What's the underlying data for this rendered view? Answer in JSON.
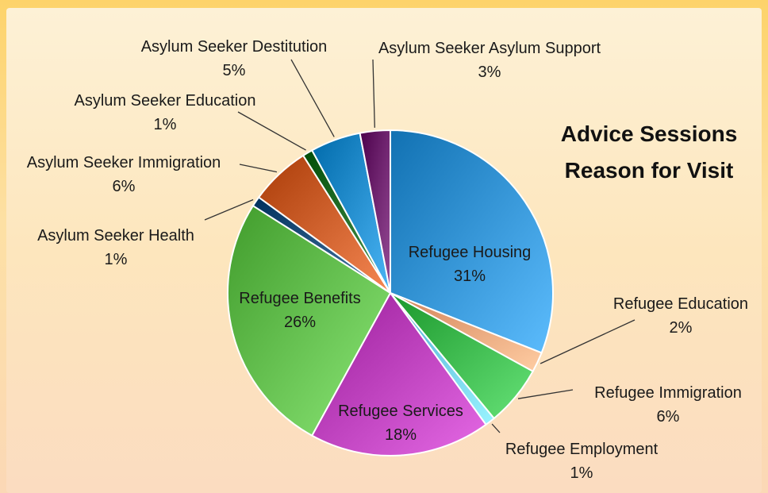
{
  "chart_data": {
    "type": "pie",
    "title": [
      "Advice Sessions",
      "Reason for Visit"
    ],
    "slices": [
      {
        "label": "Refugee Housing",
        "value": 31,
        "display": "31%",
        "color": "#2f8fd0"
      },
      {
        "label": "Refugee Education",
        "value": 2,
        "display": "2%",
        "color": "#f0a076"
      },
      {
        "label": "Refugee Immigration",
        "value": 6,
        "display": "6%",
        "color": "#39b54a"
      },
      {
        "label": "Refugee Employment",
        "value": 1,
        "display": "1%",
        "color": "#6cc7ef"
      },
      {
        "label": "Refugee Services",
        "value": 18,
        "display": "18%",
        "color": "#b83cb8"
      },
      {
        "label": "Refugee Benefits",
        "value": 26,
        "display": "26%",
        "color": "#5fba4a"
      },
      {
        "label": "Asylum Seeker Health",
        "value": 1,
        "display": "1%",
        "color": "#1d4e7a"
      },
      {
        "label": "Asylum Seeker Immigration",
        "value": 6,
        "display": "6%",
        "color": "#c85a26"
      },
      {
        "label": "Asylum Seeker Education",
        "value": 1,
        "display": "1%",
        "color": "#1f6b25"
      },
      {
        "label": "Asylum Seeker Destitution",
        "value": 5,
        "display": "5%",
        "color": "#1e88c8"
      },
      {
        "label": "Asylum Seeker Asylum Support",
        "value": 3,
        "display": "3%",
        "color": "#6a1f6a"
      }
    ]
  }
}
